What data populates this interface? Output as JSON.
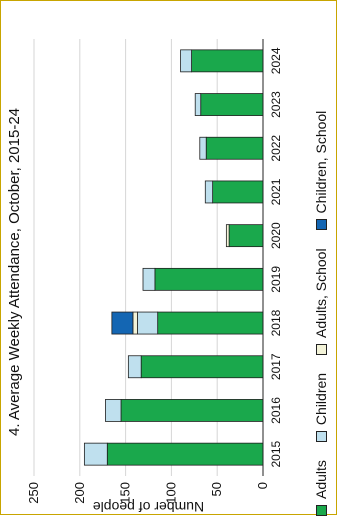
{
  "chart_data": {
    "type": "bar",
    "stacked": true,
    "orientation": "vertical-rotated",
    "title": "4. Average Weekly Attendance, October, 2015-24",
    "ylabel": "Number of people",
    "xlabel": "",
    "ylim": [
      0,
      250
    ],
    "yticks": [
      "0",
      "50",
      "100",
      "150",
      "200",
      "250"
    ],
    "grid": true,
    "legend_position": "bottom",
    "categories": [
      "2015",
      "2016",
      "2017",
      "2018",
      "2019",
      "2020",
      "2021",
      "2022",
      "2023",
      "2024"
    ],
    "series": [
      {
        "name": "Adults",
        "color": "#1aa84c",
        "values": [
          170,
          155,
          133,
          115,
          118,
          37,
          55,
          62,
          68,
          78
        ]
      },
      {
        "name": "Children",
        "color": "#bfe0ee",
        "values": [
          25,
          17,
          14,
          22,
          13,
          0,
          8,
          7,
          6,
          12
        ]
      },
      {
        "name": "Adults, School",
        "color": "#f3f3d8",
        "values": [
          0,
          0,
          0,
          5,
          0,
          3,
          0,
          0,
          0,
          0
        ]
      },
      {
        "name": "Children, School",
        "color": "#1466b3",
        "values": [
          0,
          0,
          0,
          23,
          0,
          0,
          0,
          0,
          0,
          0
        ]
      }
    ]
  }
}
